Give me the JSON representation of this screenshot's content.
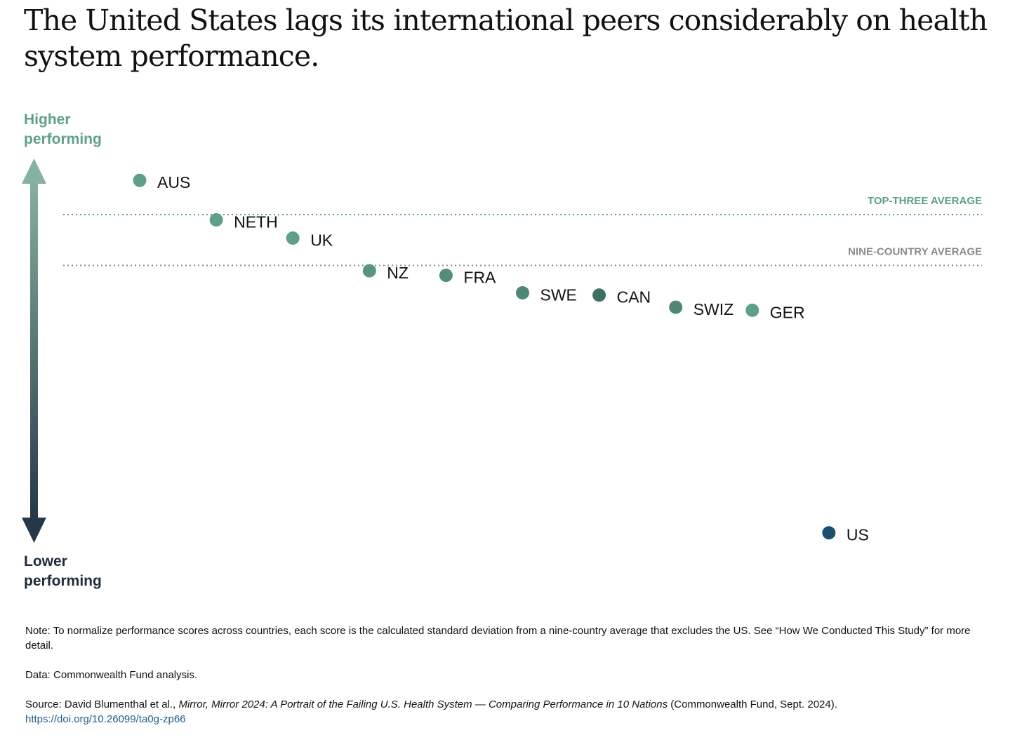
{
  "title": "The United States lags its international peers considerably on health system performance.",
  "colors": {
    "teal": "#5e9f8c",
    "teal_dark": "#3e6e64",
    "us_blue": "#1b4f72",
    "grey": "#8a8a8a",
    "arrow_top": "#86b09f",
    "arrow_bottom": "#263848",
    "label_dark": "#1d2b3a"
  },
  "chart_data": {
    "type": "scatter",
    "y_top_label": "Higher performing",
    "y_bottom_label": "Lower performing",
    "reference_lines": [
      {
        "label": "TOP-THREE AVERAGE",
        "y": 0.67
      },
      {
        "label": "NINE-COUNTRY AVERAGE",
        "y": 0.0
      }
    ],
    "points": [
      {
        "label": "AUS",
        "rank": 1,
        "y": 1.12,
        "color": "#5e9f8c"
      },
      {
        "label": "NETH",
        "rank": 2,
        "y": 0.6,
        "color": "#5e9f8c"
      },
      {
        "label": "UK",
        "rank": 3,
        "y": 0.36,
        "color": "#5e9f8c"
      },
      {
        "label": "NZ",
        "rank": 4,
        "y": -0.07,
        "color": "#5a9484"
      },
      {
        "label": "FRA",
        "rank": 5,
        "y": -0.13,
        "color": "#548c7d"
      },
      {
        "label": "SWE",
        "rank": 6,
        "y": -0.36,
        "color": "#4f8677"
      },
      {
        "label": "CAN",
        "rank": 7,
        "y": -0.39,
        "color": "#3e6e64"
      },
      {
        "label": "SWIZ",
        "rank": 8,
        "y": -0.55,
        "color": "#4f8677"
      },
      {
        "label": "GER",
        "rank": 9,
        "y": -0.59,
        "color": "#5e9f8c"
      },
      {
        "label": "US",
        "rank": 10,
        "y": -3.52,
        "color": "#1b4f72"
      }
    ]
  },
  "notes": {
    "note": "Note: To normalize performance scores across countries, each score is the calculated standard deviation from a nine-country average that excludes the US. See “How We Conducted This Study” for more detail.",
    "data": "Data: Commonwealth Fund analysis.",
    "source_prefix": "Source: David Blumenthal et al., ",
    "source_title": "Mirror, Mirror 2024: A Portrait of the Failing U.S. Health System — Comparing Performance in 10 Nations",
    "source_suffix": " (Commonwealth Fund, Sept. 2024).",
    "link": "https://doi.org/10.26099/ta0g-zp66"
  }
}
